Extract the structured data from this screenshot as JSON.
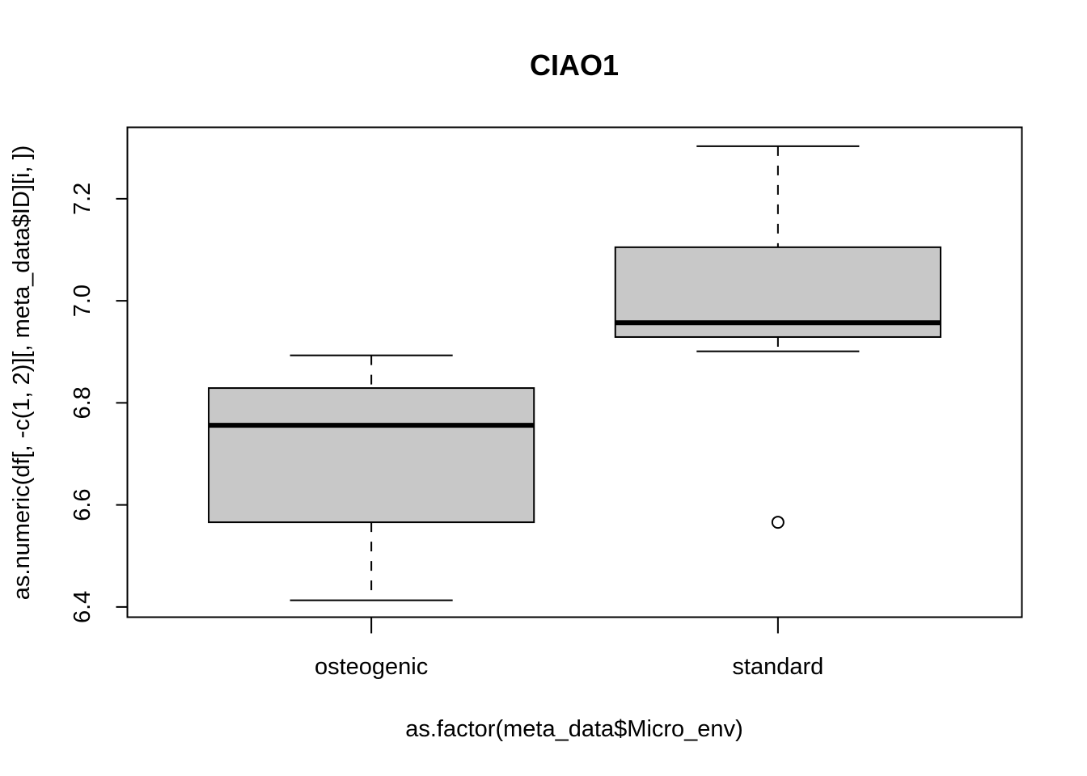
{
  "chart_data": {
    "type": "boxplot",
    "title": "CIAO1",
    "xlabel": "as.factor(meta_data$Micro_env)",
    "ylabel": "as.numeric(df[, -c(1, 2)][, meta_data$ID][i, ])",
    "categories": [
      "osteogenic",
      "standard"
    ],
    "ylim": [
      6.38,
      7.34
    ],
    "yticks": [
      6.4,
      6.6,
      6.8,
      7.0,
      7.2
    ],
    "ytick_labels": [
      "6.4",
      "6.6",
      "6.8",
      "7.0",
      "7.2"
    ],
    "boxes": [
      {
        "category": "osteogenic",
        "whisker_low": 6.413,
        "q1": 6.566,
        "median": 6.756,
        "q3": 6.829,
        "whisker_high": 6.893,
        "outliers": []
      },
      {
        "category": "standard",
        "whisker_low": 6.901,
        "q1": 6.929,
        "median": 6.957,
        "q3": 7.105,
        "whisker_high": 7.303,
        "outliers": [
          6.566
        ]
      }
    ],
    "box_fill": "#c8c8c8",
    "grid": false,
    "legend": "none"
  }
}
